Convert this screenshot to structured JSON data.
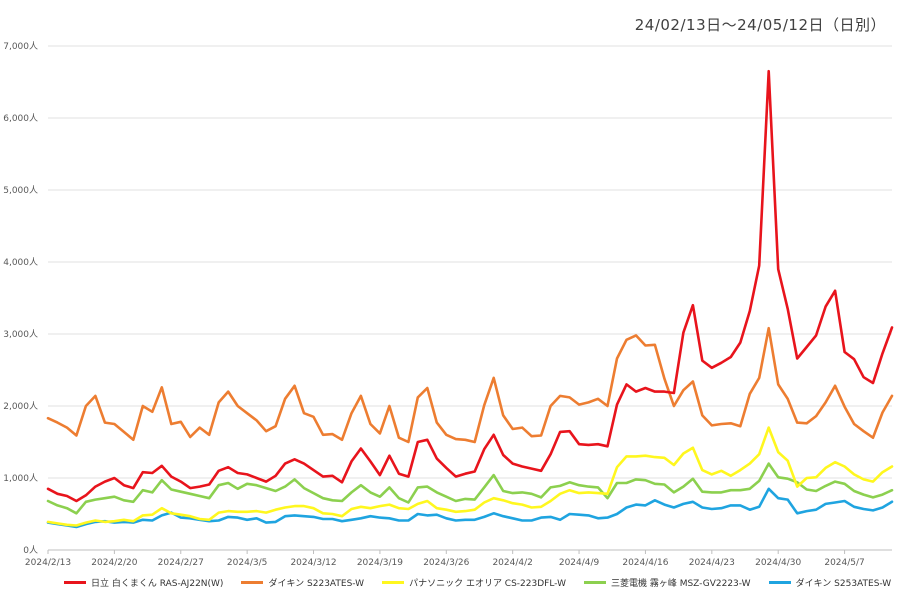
{
  "chart_data": {
    "type": "line",
    "title": "",
    "subtitle": "24/02/13日～24/05/12日（日別）",
    "xlabel": "",
    "ylabel": "",
    "ylim": [
      0,
      7000
    ],
    "y_ticks": [
      0,
      1000,
      2000,
      3000,
      4000,
      5000,
      6000,
      7000
    ],
    "y_tick_labels": [
      "0人",
      "1,000人",
      "2,000人",
      "3,000人",
      "4,000人",
      "5,000人",
      "6,000人",
      "7,000人"
    ],
    "x_tick_labels": [
      "2024/2/13",
      "2024/2/20",
      "2024/2/27",
      "2024/3/5",
      "2024/3/12",
      "2024/3/19",
      "2024/3/26",
      "2024/4/2",
      "2024/4/9",
      "2024/4/16",
      "2024/4/23",
      "2024/4/30",
      "2024/5/7"
    ],
    "x_tick_days": [
      0,
      7,
      14,
      21,
      28,
      35,
      42,
      49,
      56,
      63,
      70,
      77,
      84
    ],
    "grid": true,
    "legend_position": "bottom",
    "series": [
      {
        "name": "日立 白くまくん RAS-AJ22N(W)",
        "color": "#e8141c",
        "values": [
          850,
          780,
          750,
          680,
          760,
          880,
          950,
          1000,
          900,
          860,
          1080,
          1070,
          1170,
          1020,
          950,
          860,
          880,
          910,
          1100,
          1150,
          1070,
          1050,
          1000,
          950,
          1030,
          1200,
          1260,
          1200,
          1110,
          1020,
          1030,
          940,
          1230,
          1410,
          1230,
          1040,
          1310,
          1060,
          1020,
          1500,
          1530,
          1270,
          1140,
          1020,
          1060,
          1090,
          1400,
          1600,
          1320,
          1200,
          1160,
          1130,
          1100,
          1330,
          1640,
          1650,
          1470,
          1460,
          1470,
          1440,
          2020,
          2300,
          2200,
          2250,
          2200,
          2200,
          2180,
          3020,
          3400,
          2630,
          2530,
          2600,
          2680,
          2880,
          3320,
          3950,
          6650,
          3900,
          3350,
          2660,
          2820,
          2980,
          3380,
          3600,
          2750,
          2650,
          2400,
          2320,
          2730,
          3090
        ]
      },
      {
        "name": "ダイキン S223ATES-W",
        "color": "#ed7d31",
        "values": [
          1830,
          1770,
          1700,
          1590,
          2000,
          2140,
          1770,
          1750,
          1640,
          1530,
          2000,
          1920,
          2260,
          1750,
          1780,
          1570,
          1700,
          1600,
          2050,
          2200,
          2000,
          1900,
          1800,
          1650,
          1720,
          2100,
          2280,
          1900,
          1850,
          1600,
          1610,
          1530,
          1900,
          2140,
          1750,
          1620,
          2000,
          1560,
          1500,
          2120,
          2250,
          1770,
          1600,
          1540,
          1530,
          1500,
          2010,
          2390,
          1870,
          1680,
          1700,
          1580,
          1590,
          2000,
          2140,
          2120,
          2020,
          2050,
          2100,
          2000,
          2660,
          2920,
          2980,
          2840,
          2850,
          2380,
          2000,
          2220,
          2340,
          1870,
          1730,
          1750,
          1760,
          1720,
          2170,
          2390,
          3080,
          2300,
          2100,
          1770,
          1760,
          1860,
          2050,
          2280,
          1990,
          1750,
          1650,
          1560,
          1910,
          2140
        ]
      },
      {
        "name": "パナソニック エオリア CS-223DFL-W",
        "color": "#fff71f",
        "values": [
          390,
          370,
          350,
          340,
          380,
          410,
          390,
          400,
          420,
          400,
          480,
          490,
          580,
          510,
          490,
          470,
          430,
          420,
          520,
          540,
          530,
          530,
          540,
          520,
          560,
          590,
          610,
          610,
          580,
          510,
          500,
          470,
          570,
          600,
          580,
          610,
          630,
          580,
          570,
          640,
          680,
          580,
          560,
          530,
          540,
          560,
          660,
          720,
          690,
          650,
          630,
          590,
          600,
          680,
          780,
          830,
          790,
          800,
          790,
          780,
          1150,
          1300,
          1300,
          1310,
          1290,
          1280,
          1180,
          1340,
          1420,
          1110,
          1050,
          1100,
          1030,
          1110,
          1200,
          1330,
          1700,
          1360,
          1240,
          880,
          1000,
          1010,
          1140,
          1220,
          1160,
          1050,
          980,
          950,
          1080,
          1160
        ]
      },
      {
        "name": "三菱電機 霧ヶ峰 MSZ-GV2223-W",
        "color": "#8cd04f",
        "values": [
          680,
          620,
          580,
          510,
          670,
          700,
          720,
          740,
          690,
          670,
          830,
          800,
          970,
          840,
          810,
          780,
          750,
          720,
          900,
          930,
          850,
          920,
          900,
          860,
          820,
          880,
          980,
          860,
          790,
          720,
          690,
          680,
          800,
          900,
          800,
          740,
          870,
          720,
          660,
          870,
          880,
          800,
          740,
          680,
          710,
          700,
          870,
          1040,
          820,
          790,
          800,
          780,
          730,
          870,
          890,
          940,
          900,
          880,
          870,
          720,
          930,
          930,
          980,
          970,
          920,
          910,
          800,
          880,
          990,
          810,
          800,
          800,
          830,
          830,
          850,
          960,
          1200,
          1010,
          990,
          940,
          840,
          820,
          890,
          950,
          920,
          820,
          770,
          730,
          770,
          830
        ]
      },
      {
        "name": "ダイキン S253ATES-W",
        "color": "#1fa4e0",
        "values": [
          380,
          360,
          340,
          320,
          360,
          390,
          400,
          380,
          390,
          380,
          420,
          410,
          480,
          520,
          450,
          440,
          420,
          400,
          410,
          460,
          450,
          420,
          440,
          380,
          390,
          470,
          480,
          470,
          460,
          430,
          430,
          400,
          420,
          440,
          470,
          450,
          440,
          410,
          410,
          500,
          480,
          490,
          440,
          410,
          420,
          420,
          460,
          510,
          470,
          440,
          410,
          410,
          450,
          460,
          420,
          500,
          490,
          480,
          440,
          450,
          500,
          590,
          630,
          620,
          690,
          630,
          590,
          640,
          670,
          590,
          570,
          580,
          620,
          620,
          560,
          600,
          850,
          720,
          700,
          510,
          540,
          560,
          640,
          660,
          680,
          600,
          570,
          550,
          590,
          670
        ]
      }
    ]
  }
}
